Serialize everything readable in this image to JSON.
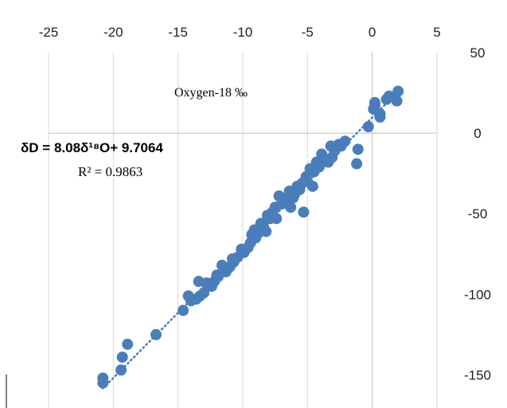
{
  "caption_fragment": "",
  "chart_data": {
    "type": "scatter",
    "title": "Oxygen-18 ‰",
    "xlabel": "",
    "ylabel": "",
    "xlim": [
      -25,
      5
    ],
    "ylim": [
      -175,
      50
    ],
    "x_ticks": [
      -25,
      -20,
      -15,
      -10,
      -5,
      0,
      5
    ],
    "y_ticks": [
      50,
      0,
      -50,
      -100,
      -150
    ],
    "x_tick_labels": [
      "-25",
      "-20",
      "-15",
      "-10",
      "-5",
      "0",
      "5"
    ],
    "y_tick_labels": [
      "50",
      "0",
      "-50",
      "-100",
      "-150"
    ],
    "grid": "vertical lines at x ticks",
    "x_axis_position": "top",
    "y_axis_position": "right",
    "trendline": {
      "style": "dotted",
      "slope": 8.08,
      "intercept": 9.7064,
      "x_range": [
        -20.8,
        2.0
      ],
      "equation_label": "δD = 8.08δ¹⁸O+ 9.7064",
      "r2_label": "R² = 0.9863"
    },
    "series": [
      {
        "color": "#4a7ebb",
        "points": [
          [
            2.0,
            26
          ],
          [
            1.9,
            20
          ],
          [
            1.3,
            23
          ],
          [
            1.1,
            21
          ],
          [
            0.6,
            12
          ],
          [
            0.6,
            10
          ],
          [
            0.2,
            19
          ],
          [
            0.2,
            17
          ],
          [
            0.1,
            15
          ],
          [
            -0.3,
            4
          ],
          [
            -1.1,
            -10
          ],
          [
            -1.2,
            -19
          ],
          [
            -2.1,
            -5
          ],
          [
            -2.4,
            -8
          ],
          [
            -2.6,
            -7
          ],
          [
            -2.9,
            -11
          ],
          [
            -3.1,
            -15
          ],
          [
            -3.2,
            -8
          ],
          [
            -3.4,
            -18
          ],
          [
            -3.7,
            -16
          ],
          [
            -3.9,
            -13
          ],
          [
            -4.1,
            -21
          ],
          [
            -4.3,
            -18
          ],
          [
            -4.5,
            -24
          ],
          [
            -4.6,
            -33
          ],
          [
            -4.8,
            -22
          ],
          [
            -5.0,
            -30
          ],
          [
            -5.1,
            -27
          ],
          [
            -5.4,
            -31
          ],
          [
            -5.6,
            -35
          ],
          [
            -5.8,
            -33
          ],
          [
            -6.0,
            -38
          ],
          [
            -6.1,
            -40
          ],
          [
            -6.4,
            -36
          ],
          [
            -6.6,
            -40
          ],
          [
            -6.8,
            -43
          ],
          [
            -7.0,
            -44
          ],
          [
            -7.2,
            -39
          ],
          [
            -7.5,
            -46
          ],
          [
            -7.7,
            -49
          ],
          [
            -7.9,
            -53
          ],
          [
            -8.1,
            -51
          ],
          [
            -8.4,
            -58
          ],
          [
            -8.6,
            -56
          ],
          [
            -8.8,
            -62
          ],
          [
            -9.0,
            -65
          ],
          [
            -9.1,
            -60
          ],
          [
            -9.4,
            -68
          ],
          [
            -9.6,
            -71
          ],
          [
            -9.9,
            -74
          ],
          [
            -10.1,
            -72
          ],
          [
            -10.4,
            -77
          ],
          [
            -10.7,
            -80
          ],
          [
            -11.0,
            -83
          ],
          [
            -11.3,
            -86
          ],
          [
            -11.6,
            -82
          ],
          [
            -11.9,
            -89
          ],
          [
            -12.2,
            -92
          ],
          [
            -12.4,
            -95
          ],
          [
            -12.8,
            -93
          ],
          [
            -13.0,
            -99
          ],
          [
            -13.3,
            -101
          ],
          [
            -13.6,
            -103
          ],
          [
            -14.0,
            -104
          ],
          [
            -14.6,
            -110
          ],
          [
            -16.7,
            -125
          ],
          [
            -18.9,
            -131
          ],
          [
            -19.3,
            -139
          ],
          [
            -19.4,
            -147
          ],
          [
            -20.8,
            -152
          ],
          [
            -20.8,
            -155
          ],
          [
            -5.3,
            -49
          ],
          [
            -7.4,
            -53
          ],
          [
            -6.3,
            -46
          ],
          [
            -8.2,
            -61
          ],
          [
            -9.3,
            -63
          ],
          [
            -10.8,
            -78
          ],
          [
            -12.0,
            -88
          ],
          [
            -13.4,
            -92
          ],
          [
            -14.2,
            -101
          ]
        ]
      }
    ]
  }
}
